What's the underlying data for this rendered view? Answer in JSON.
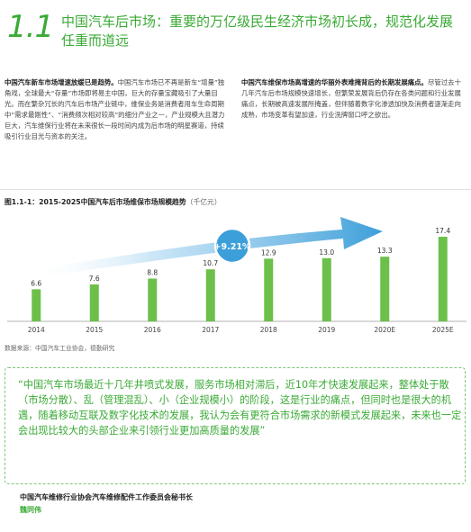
{
  "header": {
    "section_number": "1.1",
    "title": "中国汽车后市场：重要的万亿级民生经济市场初长成，规范化发展任重而道远"
  },
  "left_column": {
    "lead": "中国汽车新车市场增速放缓已是趋势。",
    "body": "中国汽车市场已不再是新车“增量”独角戏，全球最大“存量”市场即将易主中国，巨大的存量宝藏吸引了大量目光。而在繁杂冗长的汽车后市场产业链中，维保业务是消费者用车生命周期中“需求最刚性”、“消费频次相对较高”的细分产业之一，产业规模大且潜力巨大，汽车维保行业将在未来很长一段时间内成为后市场的明星赛道，持续吸引行业目光与资本的关注。"
  },
  "right_column": {
    "lead": "中国汽车维保市场高增速的华丽外表难掩背后的长期发展痛点。",
    "body": "尽管过去十几年汽车后市场规模快速增长，但繁荣发展背后仍存在各类问题和行业发展痛点，长期被高速发展所掩盖，但伴随着数字化渗透加快及消费者逐渐走向成熟，市场变革有望加速，行业洗牌窗口呼之欲出。"
  },
  "figure": {
    "title": "图1.1-1：2015-2025中国汽车后市场维保市场规模趋势",
    "unit": "（千亿元）",
    "source": "数据来源：中国汽车工业协会，德勤研究",
    "growth_badge": "+9.21%"
  },
  "chart_data": {
    "type": "bar",
    "categories": [
      "2014",
      "2015",
      "2016",
      "2017",
      "2018",
      "2019",
      "2020E",
      "2025E"
    ],
    "values": [
      6.6,
      7.6,
      8.8,
      10.7,
      12.9,
      13.0,
      13.3,
      17.4
    ],
    "value_labels": [
      "6.6",
      "7.6",
      "8.8",
      "10.7",
      "12.9",
      "13.0",
      "13.3",
      "17.4"
    ],
    "ylim": [
      0,
      20
    ],
    "title": "图1.1-1：2015-2025中国汽车后市场维保市场规模趋势",
    "xlabel": "",
    "ylabel": "",
    "bar_color": "#6cc04a",
    "annotation": "+9.21%",
    "grid": false
  },
  "quote": {
    "text": "“中国汽车市场最近十几年井喷式发展，服务市场相对滞后，近10年才快速发展起来，整体处于散（市场分散）、乱（管理混乱）、小（企业规模小）的阶段，这是行业的痛点，但同时也是很大的机遇，随着移动互联及数字化技术的发展，我认为会有更符合市场需求的新模式发展起来，未来也一定会出现比较大的头部企业来引领行业更加高质量的发展”",
    "author_title": "中国汽车维修行业协会汽车维修配件工作委员会秘书长",
    "author_name": "魏同伟"
  },
  "colors": {
    "accent": "#3aaa35",
    "bar": "#6cc04a",
    "arrow": "#3d9fd9"
  }
}
